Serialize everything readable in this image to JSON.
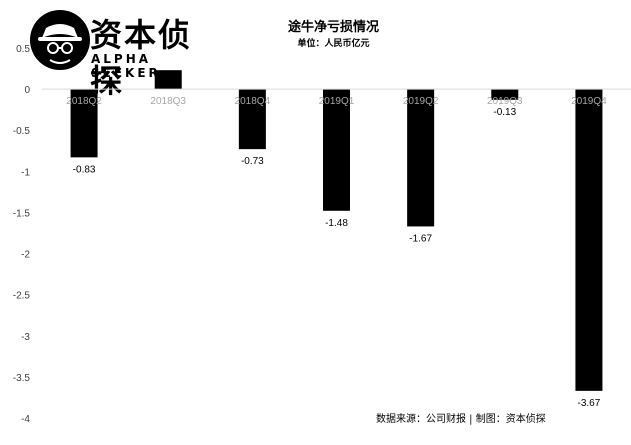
{
  "logo": {
    "name_cn": "资本侦探",
    "name_en": "ALPHA SEEKER",
    "icon": "detective-hat-icon"
  },
  "footer": {
    "source": "数据来源：公司财报 | 制图：资本侦探"
  },
  "chart_data": {
    "type": "bar",
    "title": "途牛净亏损情况",
    "subtitle": "单位：人民币亿元",
    "xlabel": "",
    "ylabel": "",
    "categories": [
      "2018Q2",
      "2018Q3",
      "2018Q4",
      "2019Q1",
      "2019Q2",
      "2019Q3",
      "2019Q4"
    ],
    "series": [
      {
        "values": [
          -0.83,
          0.23,
          -0.73,
          -1.48,
          -1.67,
          -0.13,
          -3.67
        ],
        "data_labels": [
          "-0.83",
          "",
          "-0.73",
          "-1.48",
          "-1.67",
          "-0.13",
          "-3.67"
        ],
        "color": "#000000"
      }
    ],
    "ylim": [
      -4,
      0.5
    ],
    "yticks": [
      0.5,
      0,
      -0.5,
      -1,
      -1.5,
      -2,
      -2.5,
      -3,
      -3.5,
      -4
    ],
    "ytick_labels": [
      "0.5",
      "0",
      "-0.5",
      "-1",
      "-1.5",
      "-2",
      "-2.5",
      "-3",
      "-3.5",
      "-4"
    ],
    "grid": false,
    "legend": "none",
    "category_label_color": "#a6a6a6",
    "axis_color": "#d9d9d9"
  }
}
